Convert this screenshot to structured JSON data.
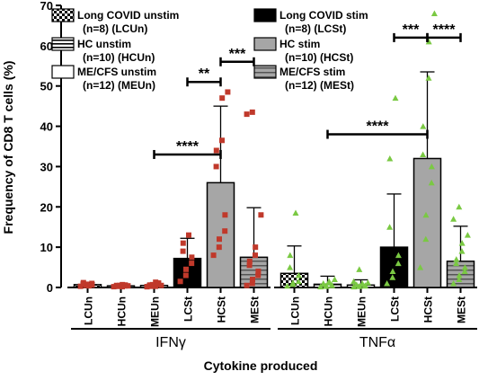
{
  "chart_data": {
    "type": "bar",
    "ylabel": "Frequency of CD8 T cells (%)",
    "xlabel": "Cytokine produced",
    "ylim": [
      0,
      70
    ],
    "yticks": [
      0,
      10,
      20,
      30,
      40,
      50,
      60,
      70
    ],
    "groups": [
      {
        "name": "IFNγ",
        "categories": [
          "LCUn",
          "HCUn",
          "MEUn",
          "LCSt",
          "HCSt",
          "MESt"
        ],
        "means": [
          0.7,
          0.4,
          0.5,
          7.2,
          26.0,
          7.5
        ],
        "errors": [
          0.5,
          0.3,
          0.5,
          5.0,
          19.0,
          12.3
        ],
        "points": [
          [
            0.3,
            0.5,
            0.8,
            1.0,
            0.6,
            0.9,
            1.2,
            0.4
          ],
          [
            0.2,
            0.3,
            0.5,
            0.4,
            0.6,
            0.3,
            0.5,
            0.2,
            0.7,
            0.4
          ],
          [
            0.2,
            0.3,
            0.5,
            0.8,
            1.1,
            0.4,
            0.6,
            0.3,
            1.3,
            0.5,
            0.2,
            0.7
          ],
          [
            1.5,
            3.0,
            4.5,
            6.0,
            7.5,
            9.0,
            11.0,
            13.0
          ],
          [
            8.0,
            10.0,
            12.0,
            14.0,
            18.0,
            30.0,
            34.0,
            36.5,
            47.0,
            48.5
          ],
          [
            0.5,
            1.0,
            2.0,
            3.0,
            4.0,
            5.5,
            6.5,
            8.0,
            10.0,
            18.0,
            43.0,
            43.5
          ]
        ],
        "significance": [
          {
            "from": 3,
            "to": 4,
            "label": "**",
            "y": 51
          },
          {
            "from": 4,
            "to": 5,
            "label": "***",
            "y": 56
          },
          {
            "from": 2,
            "to": 4,
            "label": "****",
            "y": 33
          }
        ]
      },
      {
        "name": "TNFα",
        "categories": [
          "LCUn",
          "HCUn",
          "MEUn",
          "LCSt",
          "HCSt",
          "MESt"
        ],
        "means": [
          3.5,
          0.8,
          0.6,
          10.0,
          32.0,
          6.5
        ],
        "errors": [
          6.8,
          2.0,
          1.3,
          13.2,
          21.5,
          8.7
        ],
        "points": [
          [
            0.4,
            0.8,
            1.2,
            1.5,
            3.0,
            5.0,
            8.0,
            18.5
          ],
          [
            0.2,
            0.3,
            0.4,
            0.5,
            0.6,
            0.8,
            1.0,
            1.2,
            1.5,
            2.0
          ],
          [
            0.2,
            0.3,
            0.3,
            0.4,
            0.5,
            0.6,
            0.7,
            0.8,
            1.0,
            1.2,
            1.5,
            4.5
          ],
          [
            1.0,
            2.5,
            4.0,
            6.0,
            8.0,
            15.0,
            32.0,
            47.0
          ],
          [
            5.0,
            12.0,
            18.0,
            26.0,
            30.0,
            33.0,
            40.0,
            52.0,
            61.0,
            68.0
          ],
          [
            1.0,
            2.0,
            3.0,
            4.0,
            5.0,
            6.0,
            7.0,
            9.0,
            11.0,
            13.0,
            17.0,
            20.0
          ]
        ],
        "significance": [
          {
            "from": 3,
            "to": 4,
            "label": "***",
            "y": 62
          },
          {
            "from": 4,
            "to": 5,
            "label": "****",
            "y": 62
          },
          {
            "from": 1,
            "to": 4,
            "label": "****",
            "y": 38
          }
        ]
      }
    ],
    "legend": [
      {
        "label": "Long COVID unstim",
        "sublabel": "(n=8) (LCUn)",
        "pattern": "checker"
      },
      {
        "label": "HC unstim",
        "sublabel": "(n=10) (HCUn)",
        "pattern": "hstripe"
      },
      {
        "label": "ME/CFS unstim",
        "sublabel": "(n=12) (MEUn)",
        "pattern": "white"
      },
      {
        "label": "Long COVID stim",
        "sublabel": "(n=8) (LCSt)",
        "pattern": "black"
      },
      {
        "label": "HC stim",
        "sublabel": "(n=10) (HCSt)",
        "pattern": "gray"
      },
      {
        "label": "ME/CFS stim",
        "sublabel": "(n=12) (MESt)",
        "pattern": "graystripe"
      }
    ],
    "colors": {
      "IFNγ_points": "#c0392b",
      "TNFα_points": "#7ac943",
      "gray_fill": "#a6a6a6",
      "bar_edge": "#000000"
    },
    "legend_position": "top"
  }
}
